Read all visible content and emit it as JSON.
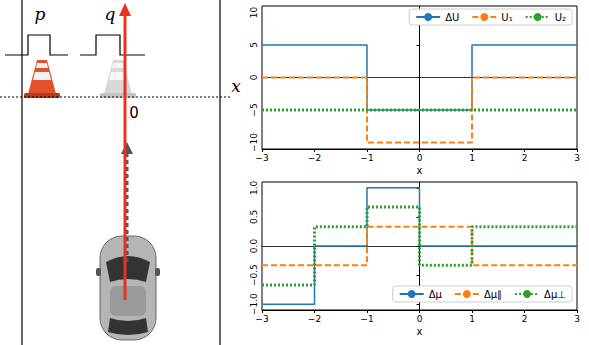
{
  "chart_data": [
    {
      "type": "line",
      "xlabel": "x",
      "x": [
        -3,
        -1,
        -1,
        1,
        1,
        3
      ],
      "series": [
        {
          "name": "ΔU",
          "color": "#1f77b4",
          "line_style": "solid",
          "values": [
            5,
            5,
            -5,
            -5,
            5,
            5
          ]
        },
        {
          "name": "U₁",
          "color": "#ff7f0e",
          "line_style": "dashed",
          "values": [
            0,
            0,
            -10,
            -10,
            0,
            0
          ]
        },
        {
          "name": "U₂",
          "color": "#2ca02c",
          "line_style": "dotted",
          "values": [
            -5,
            -5,
            -5,
            -5,
            -5,
            -5
          ]
        }
      ],
      "xlim": [
        -3,
        3
      ],
      "xticks": [
        {
          "value": -3,
          "label": "−3"
        },
        {
          "value": -2,
          "label": "−2"
        },
        {
          "value": -1,
          "label": "−1"
        },
        0,
        1,
        2,
        3
      ],
      "ylim": [
        -11,
        11
      ],
      "yticks": [
        {
          "value": -10,
          "label": "−10"
        },
        {
          "value": -5,
          "label": "−5"
        },
        0,
        5,
        10
      ],
      "legend": "upper right",
      "grid": false
    },
    {
      "type": "line",
      "xlabel": "x",
      "x": [
        -3,
        -2,
        -2,
        -1,
        -1,
        0,
        0,
        1,
        1,
        3
      ],
      "series": [
        {
          "name": "Δμ",
          "color": "#1f77b4",
          "line_style": "solid",
          "values": [
            -1,
            -1,
            0,
            0,
            1,
            1,
            0,
            0,
            0,
            0
          ]
        },
        {
          "name": "Δμ∥",
          "color": "#ff7f0e",
          "line_style": "dashed",
          "values": [
            -0.33,
            -0.33,
            -0.33,
            -0.33,
            0.33,
            0.33,
            0.33,
            0.33,
            -0.33,
            -0.33
          ]
        },
        {
          "name": "Δμ⊥",
          "color": "#2ca02c",
          "line_style": "dotted",
          "values": [
            -0.67,
            -0.67,
            0.33,
            0.33,
            0.67,
            0.67,
            -0.33,
            -0.33,
            0.33,
            0.33
          ]
        }
      ],
      "xlim": [
        -3,
        3
      ],
      "xticks": [
        {
          "value": -3,
          "label": "−3"
        },
        {
          "value": -2,
          "label": "−2"
        },
        {
          "value": -1,
          "label": "−1"
        },
        0,
        1,
        2,
        3
      ],
      "ylim": [
        -1.1,
        1.1
      ],
      "yticks": [
        {
          "value": -1,
          "label": "−1.0"
        },
        {
          "value": -0.5,
          "label": "−0.5"
        },
        {
          "value": 0,
          "label": "0.0"
        },
        {
          "value": 0.5,
          "label": "0.5"
        },
        {
          "value": 1,
          "label": "1.0"
        }
      ],
      "legend": "lower right",
      "grid": false
    }
  ],
  "diagram": {
    "cone_labels": [
      "p",
      "q"
    ],
    "axis_label": "x",
    "origin_label": "0"
  }
}
